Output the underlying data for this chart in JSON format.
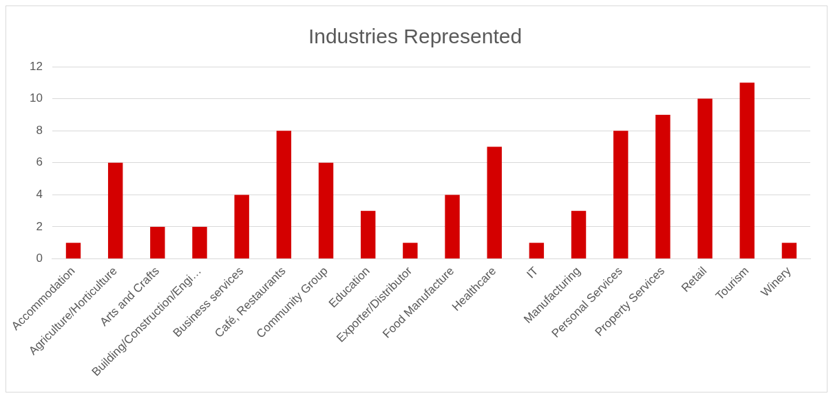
{
  "chart_data": {
    "type": "bar",
    "title": "Industries Represented",
    "categories": [
      "Accommodation",
      "Agriculture/Horticulture",
      "Arts and Crafts",
      "Building/Construction/Engi…",
      "Business services",
      "Café, Restaurants",
      "Community Group",
      "Education",
      "Exporter/Distributor",
      "Food Manufacture",
      "Healthcare",
      "IT",
      "Manufacturing",
      "Personal Services",
      "Property Services",
      "Retail",
      "Tourism",
      "Winery"
    ],
    "values": [
      1,
      6,
      2,
      2,
      4,
      8,
      6,
      3,
      1,
      4,
      7,
      1,
      3,
      8,
      9,
      10,
      11,
      1
    ],
    "color": "#d40000",
    "ylim": [
      0,
      12
    ],
    "yticks": [
      0,
      2,
      4,
      6,
      8,
      10,
      12
    ],
    "grid": "y",
    "legend": false
  }
}
